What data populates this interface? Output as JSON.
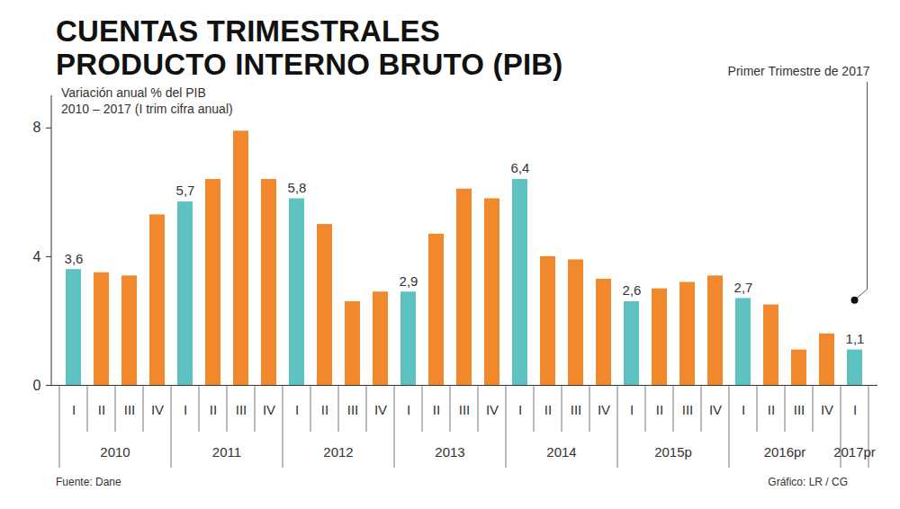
{
  "chart_data": {
    "type": "bar",
    "title": [
      "CUENTAS TRIMESTRALES",
      "PRODUCTO INTERNO BRUTO (PIB)"
    ],
    "subtitle": [
      "Variación anual % del PIB",
      "2010 – 2017 (I trim cifra anual)"
    ],
    "categories": [
      "I",
      "II",
      "III",
      "IV",
      "I",
      "II",
      "III",
      "IV",
      "I",
      "II",
      "III",
      "IV",
      "I",
      "II",
      "III",
      "IV",
      "I",
      "II",
      "III",
      "IV",
      "I",
      "II",
      "III",
      "IV",
      "I",
      "II",
      "III",
      "IV",
      "I"
    ],
    "groups": [
      "2010",
      "2010",
      "2010",
      "2010",
      "2011",
      "2011",
      "2011",
      "2011",
      "2012",
      "2012",
      "2012",
      "2012",
      "2013",
      "2013",
      "2013",
      "2013",
      "2014",
      "2014",
      "2014",
      "2014",
      "2015p",
      "2015p",
      "2015p",
      "2015p",
      "2016pr",
      "2016pr",
      "2016pr",
      "2016pr",
      "2017pr"
    ],
    "values": [
      3.6,
      3.5,
      3.4,
      5.3,
      5.7,
      6.4,
      7.9,
      6.4,
      5.8,
      5.0,
      2.6,
      2.9,
      2.9,
      4.7,
      6.1,
      5.8,
      6.4,
      4.0,
      3.9,
      3.3,
      2.6,
      3.0,
      3.2,
      3.4,
      2.7,
      2.5,
      1.1,
      1.6,
      1.1
    ],
    "value_labels": [
      "3,6",
      null,
      null,
      null,
      "5,7",
      null,
      null,
      null,
      "5,8",
      null,
      null,
      null,
      "2,9",
      null,
      null,
      null,
      "6,4",
      null,
      null,
      null,
      "2,6",
      null,
      null,
      null,
      "2,7",
      null,
      null,
      null,
      "1,1"
    ],
    "colors": [
      "#5ec2c3",
      "#f2882c",
      "#f2882c",
      "#f2882c",
      "#5ec2c3",
      "#f2882c",
      "#f2882c",
      "#f2882c",
      "#5ec2c3",
      "#f2882c",
      "#f2882c",
      "#f2882c",
      "#5ec2c3",
      "#f2882c",
      "#f2882c",
      "#f2882c",
      "#5ec2c3",
      "#f2882c",
      "#f2882c",
      "#f2882c",
      "#5ec2c3",
      "#f2882c",
      "#f2882c",
      "#f2882c",
      "#5ec2c3",
      "#f2882c",
      "#f2882c",
      "#f2882c",
      "#5ec2c3"
    ],
    "ylim": [
      0,
      9
    ],
    "yticks": [
      0,
      4,
      8
    ],
    "grid": false,
    "data_labels": true,
    "annotation": "Primer Trimestre de 2017",
    "source": "Fuente: Dane",
    "credit": "Gráfico: LR / CG"
  }
}
